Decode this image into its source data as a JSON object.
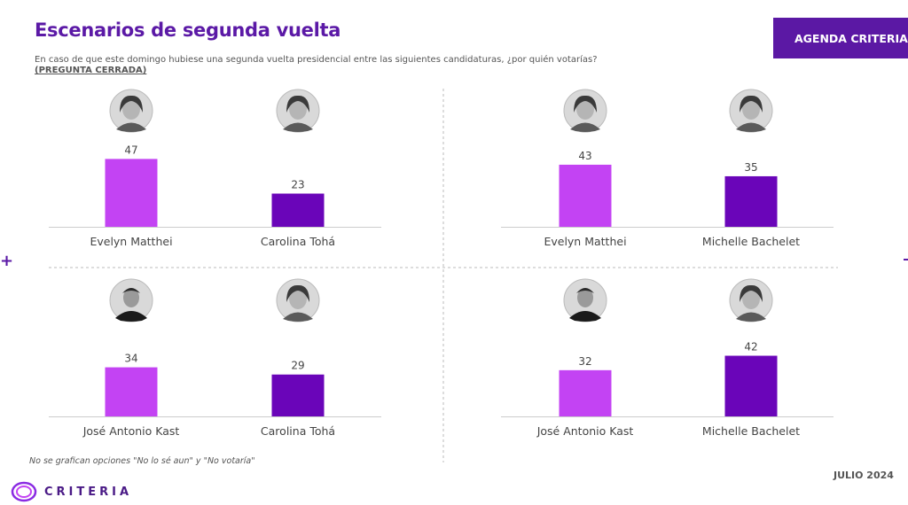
{
  "header": {
    "title": "Escenarios de segunda vuelta",
    "subtitle": "En caso de que este domingo hubiese una segunda vuelta presidencial entre las siguientes candidaturas, ¿por quién votarías?",
    "subtitle_note": "(PREGUNTA CERRADA)",
    "brand_box": "AGENDA CRITERIA"
  },
  "footer": {
    "footnote": "No se grafican opciones \"No lo sé aun\" y \"No votaría\"",
    "date": "JULIO 2024",
    "logo_text": "CRITERIA"
  },
  "colors": {
    "accent": "#5b19a6",
    "bar_first": "#c343f3",
    "bar_second": "#6a05b9",
    "label": "#444444"
  },
  "chart_data": [
    {
      "type": "bar",
      "categories": [
        "Evelyn Matthei",
        "Carolina Tohá"
      ],
      "values": [
        47,
        23
      ],
      "avatars": [
        "woman-portrait-icon",
        "woman-portrait-icon"
      ],
      "ylim": [
        0,
        60
      ]
    },
    {
      "type": "bar",
      "categories": [
        "Evelyn Matthei",
        "Michelle Bachelet"
      ],
      "values": [
        43,
        35
      ],
      "avatars": [
        "woman-portrait-icon",
        "woman-portrait-icon"
      ],
      "ylim": [
        0,
        60
      ]
    },
    {
      "type": "bar",
      "categories": [
        "José Antonio Kast",
        "Carolina Tohá"
      ],
      "values": [
        34,
        29
      ],
      "avatars": [
        "man-portrait-icon",
        "woman-portrait-icon"
      ],
      "ylim": [
        0,
        60
      ]
    },
    {
      "type": "bar",
      "categories": [
        "José Antonio Kast",
        "Michelle Bachelet"
      ],
      "values": [
        32,
        42
      ],
      "avatars": [
        "man-portrait-icon",
        "woman-portrait-icon"
      ],
      "ylim": [
        0,
        60
      ]
    }
  ]
}
